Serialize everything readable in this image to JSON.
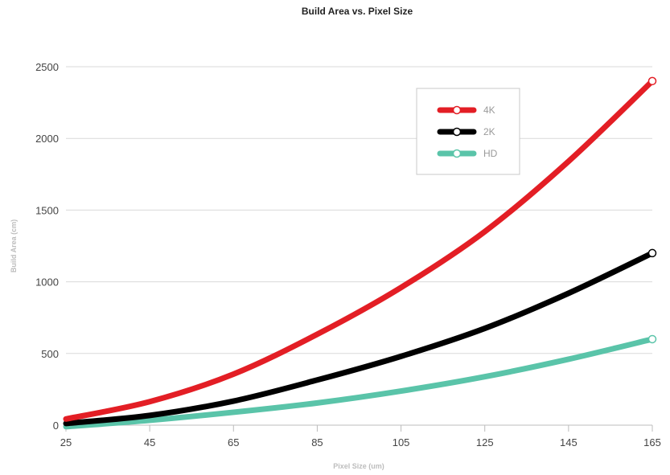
{
  "chart_data": {
    "type": "line",
    "title": "Build Area vs. Pixel Size",
    "xlabel": "Pixel Size (um)",
    "ylabel": "Build Area (cm)",
    "xlim": [
      25,
      165
    ],
    "ylim": [
      0,
      2500
    ],
    "x_ticks": [
      "25",
      "45",
      "65",
      "85",
      "105",
      "125",
      "145",
      "165"
    ],
    "y_ticks": [
      "0",
      "500",
      "1000",
      "1500",
      "2000",
      "2500"
    ],
    "grid": true,
    "legend_position": "top-right",
    "x": [
      25,
      45,
      65,
      85,
      105,
      125,
      145,
      165
    ],
    "series": [
      {
        "name": "4K",
        "color": "#e31e25",
        "values": [
          43,
          164,
          356,
          634,
          960,
          1350,
          1840,
          2400
        ]
      },
      {
        "name": "2K",
        "color": "#000000",
        "values": [
          12,
          68,
          168,
          315,
          480,
          675,
          920,
          1200
        ]
      },
      {
        "name": "HD",
        "color": "#5ac4a9",
        "values": [
          -10,
          34,
          90,
          155,
          238,
          338,
          460,
          600
        ]
      }
    ]
  }
}
